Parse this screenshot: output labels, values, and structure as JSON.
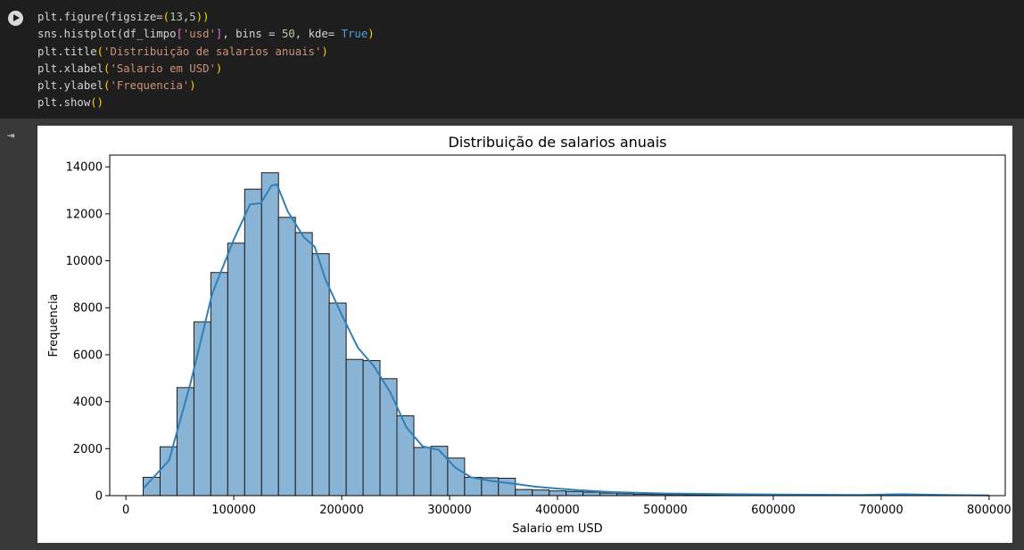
{
  "code_cell": {
    "lines": [
      [
        {
          "t": "plt.figure(figsize=",
          "c": "#d4d4d4"
        },
        {
          "t": "(",
          "c": "#ffd700"
        },
        {
          "t": "13",
          "c": "#b5cea8"
        },
        {
          "t": ",",
          "c": "#d4d4d4"
        },
        {
          "t": "5",
          "c": "#b5cea8"
        },
        {
          "t": "))",
          "c": "#ffd700"
        }
      ],
      [
        {
          "t": "sns.histplot(df_limpo",
          "c": "#d4d4d4"
        },
        {
          "t": "[",
          "c": "#da70d6"
        },
        {
          "t": "'usd'",
          "c": "#ce9178"
        },
        {
          "t": "]",
          "c": "#da70d6"
        },
        {
          "t": ", bins = ",
          "c": "#d4d4d4"
        },
        {
          "t": "50",
          "c": "#b5cea8"
        },
        {
          "t": ", kde= ",
          "c": "#d4d4d4"
        },
        {
          "t": "True",
          "c": "#569cd6"
        },
        {
          "t": ")",
          "c": "#ffd700"
        }
      ],
      [
        {
          "t": "plt.title",
          "c": "#d4d4d4"
        },
        {
          "t": "(",
          "c": "#ffd700"
        },
        {
          "t": "'Distribuição de salarios anuais'",
          "c": "#ce9178"
        },
        {
          "t": ")",
          "c": "#ffd700"
        }
      ],
      [
        {
          "t": "plt.xlabel",
          "c": "#d4d4d4"
        },
        {
          "t": "(",
          "c": "#ffd700"
        },
        {
          "t": "'Salario em USD'",
          "c": "#ce9178"
        },
        {
          "t": ")",
          "c": "#ffd700"
        }
      ],
      [
        {
          "t": "plt.ylabel",
          "c": "#d4d4d4"
        },
        {
          "t": "(",
          "c": "#ffd700"
        },
        {
          "t": "'Frequencia'",
          "c": "#ce9178"
        },
        {
          "t": ")",
          "c": "#ffd700"
        }
      ],
      [
        {
          "t": "plt.show",
          "c": "#d4d4d4"
        },
        {
          "t": "()",
          "c": "#ffd700"
        }
      ]
    ]
  },
  "icons": {
    "run": "play-icon",
    "output": "output-toggle-icon"
  },
  "output_icon_glyph": "⇥",
  "colors": {
    "bar_fill": "#8ab4d6",
    "bar_edge": "#1a1a1a",
    "kde_line": "#2f80b8"
  },
  "chart_data": {
    "type": "bar",
    "title": "Distribuição de salarios anuais",
    "xlabel": "Salario em USD",
    "ylabel": "Frequencia",
    "xlim": [
      -15000,
      815000
    ],
    "ylim": [
      0,
      14500
    ],
    "xticks": [
      0,
      100000,
      200000,
      300000,
      400000,
      500000,
      600000,
      700000,
      800000
    ],
    "xtick_labels": [
      "0",
      "100000",
      "200000",
      "300000",
      "400000",
      "500000",
      "600000",
      "700000",
      "800000"
    ],
    "yticks": [
      0,
      2000,
      4000,
      6000,
      8000,
      10000,
      12000,
      14000
    ],
    "ytick_labels": [
      "0",
      "2000",
      "4000",
      "6000",
      "8000",
      "10000",
      "12000",
      "14000"
    ],
    "grid": false,
    "bin_start": 16000,
    "bin_end": 800000,
    "bin_width": 15680,
    "values": [
      780,
      2080,
      4600,
      7400,
      9500,
      10750,
      13050,
      13750,
      11850,
      11200,
      10300,
      8200,
      5800,
      5750,
      4980,
      3400,
      2050,
      2100,
      1600,
      780,
      760,
      740,
      260,
      240,
      200,
      180,
      150,
      110,
      80,
      60,
      50,
      45,
      40,
      35,
      30,
      30,
      25,
      25,
      20,
      18,
      15,
      15,
      12,
      12,
      10,
      40,
      15,
      10,
      8,
      5
    ],
    "kde": {
      "x": [
        16000,
        40000,
        60000,
        80000,
        100000,
        115000,
        125000,
        135000,
        140000,
        150000,
        165000,
        175000,
        185000,
        200000,
        215000,
        230000,
        245000,
        260000,
        275000,
        290000,
        305000,
        320000,
        340000,
        360000,
        380000,
        400000,
        420000,
        450000,
        500000,
        560000,
        620000,
        680000,
        720000,
        760000,
        800000
      ],
      "y": [
        300,
        1500,
        4800,
        8600,
        10900,
        12400,
        12450,
        13200,
        13250,
        12100,
        11000,
        10600,
        9200,
        7700,
        6300,
        5500,
        4400,
        2900,
        2100,
        1950,
        1200,
        780,
        620,
        500,
        380,
        300,
        230,
        150,
        90,
        60,
        40,
        30,
        60,
        30,
        10
      ]
    }
  }
}
